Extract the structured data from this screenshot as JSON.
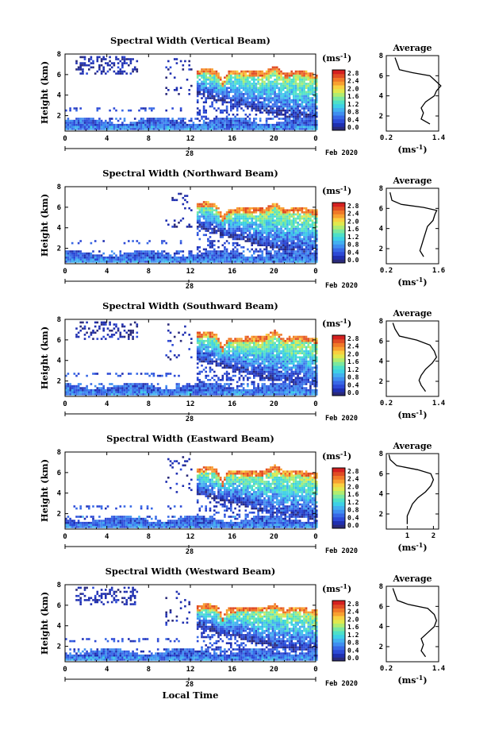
{
  "figure": {
    "xlabel": "Local Time",
    "date_label": "Feb 2020",
    "day_label": "28",
    "colorbar_unit": "(ms",
    "colorbar_unit_exp": "-1",
    "colorbar_ticks": [
      "2.8",
      "2.4",
      "2.0",
      "1.6",
      "1.2",
      "0.8",
      "0.4",
      "0.0"
    ],
    "colormap": [
      "#2a2a7a",
      "#1f2fb0",
      "#2c49d6",
      "#3768e6",
      "#3f8ef0",
      "#42b0f0",
      "#3dd0e6",
      "#4de0c8",
      "#7ae8a0",
      "#b0ec70",
      "#e0e84e",
      "#f8d040",
      "#f8a030",
      "#f07828",
      "#e04c24",
      "#d42020"
    ]
  },
  "chart_data": [
    {
      "type": "heatmap",
      "title": "Spectral Width (Vertical Beam)",
      "ylabel": "Height (km)",
      "x_ticks": [
        "0",
        "4",
        "8",
        "12",
        "16",
        "20",
        "0"
      ],
      "y_ticks": [
        "8",
        "6",
        "4",
        "2"
      ],
      "xlim": [
        0,
        24
      ],
      "ylim": [
        0.5,
        8
      ],
      "cloud_top_km": [
        [
          12.5,
          6.3
        ],
        [
          13.5,
          6.6
        ],
        [
          14.5,
          6.2
        ],
        [
          15,
          5.2
        ],
        [
          15.5,
          6.4
        ],
        [
          17,
          6.3
        ],
        [
          19,
          6.2
        ],
        [
          20,
          6.8
        ],
        [
          21,
          6.0
        ],
        [
          22,
          6.4
        ],
        [
          23,
          6.2
        ],
        [
          24,
          5.9
        ]
      ],
      "cloud_base_km": [
        [
          12.5,
          4.4
        ],
        [
          15,
          3.6
        ],
        [
          17,
          3.2
        ],
        [
          19,
          2.6
        ],
        [
          21,
          2.2
        ],
        [
          23,
          1.8
        ],
        [
          24,
          1.6
        ]
      ],
      "upper_patch": true,
      "average": {
        "title": "Average",
        "xlabel": "(ms",
        "xlabel_exp": "-1",
        "x_ticks": [
          "0.2",
          "1.4"
        ],
        "y_ticks": [
          "8",
          "6",
          "4",
          "2"
        ],
        "xlim": [
          0.2,
          1.4
        ],
        "ylim": [
          0.5,
          8
        ],
        "profile": [
          [
            1.2,
            1.2
          ],
          [
            1.0,
            1.7
          ],
          [
            1.05,
            2.3
          ],
          [
            1.0,
            2.8
          ],
          [
            1.1,
            3.4
          ],
          [
            1.3,
            4.0
          ],
          [
            1.35,
            4.5
          ],
          [
            1.45,
            5.0
          ],
          [
            1.3,
            5.6
          ],
          [
            1.2,
            6.0
          ],
          [
            0.8,
            6.3
          ],
          [
            0.5,
            6.6
          ],
          [
            0.45,
            7.2
          ],
          [
            0.4,
            7.8
          ]
        ]
      }
    },
    {
      "type": "heatmap",
      "title": "Spectral Width (Northward Beam)",
      "ylabel": "Height (km)",
      "x_ticks": [
        "0",
        "4",
        "8",
        "12",
        "16",
        "20",
        "0"
      ],
      "y_ticks": [
        "8",
        "6",
        "4",
        "2"
      ],
      "xlim": [
        0,
        24
      ],
      "ylim": [
        0.5,
        8
      ],
      "cloud_top_km": [
        [
          12.5,
          6.3
        ],
        [
          13.5,
          6.5
        ],
        [
          14.5,
          6.1
        ],
        [
          15,
          5.0
        ],
        [
          15.5,
          5.7
        ],
        [
          17,
          5.9
        ],
        [
          19,
          5.8
        ],
        [
          20,
          6.4
        ],
        [
          21,
          5.7
        ],
        [
          22,
          5.9
        ],
        [
          23,
          5.8
        ],
        [
          24,
          5.6
        ]
      ],
      "cloud_base_km": [
        [
          12.5,
          4.3
        ],
        [
          15,
          3.5
        ],
        [
          17,
          3.0
        ],
        [
          19,
          2.4
        ],
        [
          21,
          2.1
        ],
        [
          23,
          1.8
        ],
        [
          24,
          1.6
        ]
      ],
      "upper_patch": false,
      "average": {
        "title": "Average",
        "xlabel": "(ms",
        "xlabel_exp": "-1",
        "x_ticks": [
          "0.2",
          "1.6"
        ],
        "y_ticks": [
          "8",
          "6",
          "4",
          "2"
        ],
        "xlim": [
          0.2,
          1.6
        ],
        "ylim": [
          0.5,
          8
        ],
        "profile": [
          [
            1.2,
            1.2
          ],
          [
            1.1,
            1.8
          ],
          [
            1.15,
            2.4
          ],
          [
            1.2,
            3.0
          ],
          [
            1.25,
            3.6
          ],
          [
            1.3,
            4.2
          ],
          [
            1.45,
            4.8
          ],
          [
            1.5,
            5.4
          ],
          [
            1.55,
            5.8
          ],
          [
            1.2,
            6.1
          ],
          [
            0.6,
            6.4
          ],
          [
            0.35,
            6.8
          ],
          [
            0.3,
            7.6
          ]
        ]
      }
    },
    {
      "type": "heatmap",
      "title": "Spectral Width (Southward Beam)",
      "ylabel": "Height (km)",
      "x_ticks": [
        "0",
        "4",
        "8",
        "12",
        "16",
        "20",
        "0"
      ],
      "y_ticks": [
        "8",
        "6",
        "4",
        "2"
      ],
      "xlim": [
        0,
        24
      ],
      "ylim": [
        0.5,
        8
      ],
      "cloud_top_km": [
        [
          12.5,
          6.6
        ],
        [
          13.5,
          6.8
        ],
        [
          14.5,
          6.4
        ],
        [
          15,
          5.2
        ],
        [
          15.5,
          6.2
        ],
        [
          17,
          6.2
        ],
        [
          19,
          6.3
        ],
        [
          20,
          6.9
        ],
        [
          21,
          6.1
        ],
        [
          22,
          6.4
        ],
        [
          23,
          6.2
        ],
        [
          24,
          6.0
        ]
      ],
      "cloud_base_km": [
        [
          12.5,
          4.3
        ],
        [
          15,
          3.6
        ],
        [
          17,
          3.1
        ],
        [
          19,
          2.5
        ],
        [
          21,
          2.1
        ],
        [
          23,
          1.8
        ],
        [
          24,
          1.6
        ]
      ],
      "upper_patch": true,
      "average": {
        "title": "Average",
        "xlabel": "(ms",
        "xlabel_exp": "-1",
        "x_ticks": [
          "0.2",
          "1.4"
        ],
        "y_ticks": [
          "8",
          "6",
          "4",
          "2"
        ],
        "xlim": [
          0.2,
          1.4
        ],
        "ylim": [
          0.5,
          8
        ],
        "profile": [
          [
            1.1,
            1.0
          ],
          [
            1.0,
            1.6
          ],
          [
            0.95,
            2.1
          ],
          [
            1.0,
            2.6
          ],
          [
            1.1,
            3.2
          ],
          [
            1.25,
            3.8
          ],
          [
            1.35,
            4.4
          ],
          [
            1.3,
            5.0
          ],
          [
            1.2,
            5.6
          ],
          [
            0.9,
            6.1
          ],
          [
            0.5,
            6.5
          ],
          [
            0.4,
            7.2
          ],
          [
            0.35,
            7.8
          ]
        ]
      }
    },
    {
      "type": "heatmap",
      "title": "Spectral Width (Eastward Beam)",
      "ylabel": "Height (km)",
      "x_ticks": [
        "0",
        "4",
        "8",
        "12",
        "16",
        "20",
        "0"
      ],
      "y_ticks": [
        "8",
        "6",
        "4",
        "2"
      ],
      "xlim": [
        0,
        24
      ],
      "ylim": [
        0.5,
        8
      ],
      "cloud_top_km": [
        [
          12.5,
          6.2
        ],
        [
          13.5,
          6.6
        ],
        [
          14.5,
          6.2
        ],
        [
          15,
          5.0
        ],
        [
          15.5,
          6.2
        ],
        [
          17,
          6.1
        ],
        [
          19,
          6.1
        ],
        [
          20,
          6.7
        ],
        [
          21,
          6.0
        ],
        [
          22,
          6.2
        ],
        [
          23,
          6.0
        ],
        [
          24,
          5.8
        ]
      ],
      "cloud_base_km": [
        [
          12.5,
          4.2
        ],
        [
          15,
          3.5
        ],
        [
          17,
          3.0
        ],
        [
          19,
          2.4
        ],
        [
          21,
          2.0
        ],
        [
          23,
          1.8
        ],
        [
          24,
          1.6
        ]
      ],
      "upper_patch": false,
      "average": {
        "title": "Average",
        "xlabel": "(ms",
        "xlabel_exp": "-1",
        "x_ticks": [
          "1",
          "2"
        ],
        "y_ticks": [
          "8",
          "6",
          "4",
          "2"
        ],
        "xlim": [
          0.2,
          2.2
        ],
        "ylim": [
          0.5,
          8
        ],
        "profile": [
          [
            1.0,
            1.0
          ],
          [
            1.0,
            1.8
          ],
          [
            1.1,
            2.4
          ],
          [
            1.2,
            3.0
          ],
          [
            1.4,
            3.6
          ],
          [
            1.7,
            4.2
          ],
          [
            1.9,
            4.8
          ],
          [
            2.0,
            5.4
          ],
          [
            1.9,
            6.0
          ],
          [
            1.4,
            6.4
          ],
          [
            0.6,
            6.8
          ],
          [
            0.35,
            7.4
          ],
          [
            0.3,
            7.9
          ]
        ]
      }
    },
    {
      "type": "heatmap",
      "title": "Spectral Width (Westward Beam)",
      "ylabel": "Height (km)",
      "x_ticks": [
        "0",
        "4",
        "8",
        "12",
        "16",
        "20",
        "0"
      ],
      "y_ticks": [
        "8",
        "6",
        "4",
        "2"
      ],
      "xlim": [
        0,
        24
      ],
      "ylim": [
        0.5,
        8
      ],
      "cloud_top_km": [
        [
          12.5,
          5.8
        ],
        [
          13.5,
          6.1
        ],
        [
          14.5,
          5.8
        ],
        [
          15,
          4.8
        ],
        [
          15.5,
          5.6
        ],
        [
          17,
          5.8
        ],
        [
          19,
          5.7
        ],
        [
          20,
          6.1
        ],
        [
          21,
          5.5
        ],
        [
          22,
          5.8
        ],
        [
          23,
          5.6
        ],
        [
          24,
          5.4
        ]
      ],
      "cloud_base_km": [
        [
          12.5,
          4.2
        ],
        [
          15,
          3.4
        ],
        [
          17,
          2.9
        ],
        [
          19,
          2.3
        ],
        [
          21,
          2.0
        ],
        [
          23,
          1.8
        ],
        [
          24,
          1.6
        ]
      ],
      "upper_patch": true,
      "average": {
        "title": "Average",
        "xlabel": "(ms",
        "xlabel_exp": "-1",
        "x_ticks": [
          "0.2",
          "1.4"
        ],
        "y_ticks": [
          "8",
          "6",
          "4",
          "2"
        ],
        "xlim": [
          0.2,
          1.4
        ],
        "ylim": [
          0.5,
          8
        ],
        "profile": [
          [
            1.1,
            1.0
          ],
          [
            1.0,
            1.6
          ],
          [
            1.05,
            2.2
          ],
          [
            1.0,
            2.8
          ],
          [
            1.15,
            3.4
          ],
          [
            1.3,
            4.0
          ],
          [
            1.35,
            4.6
          ],
          [
            1.3,
            5.2
          ],
          [
            1.15,
            5.8
          ],
          [
            0.7,
            6.2
          ],
          [
            0.45,
            6.6
          ],
          [
            0.4,
            7.2
          ],
          [
            0.35,
            7.8
          ]
        ]
      }
    }
  ]
}
